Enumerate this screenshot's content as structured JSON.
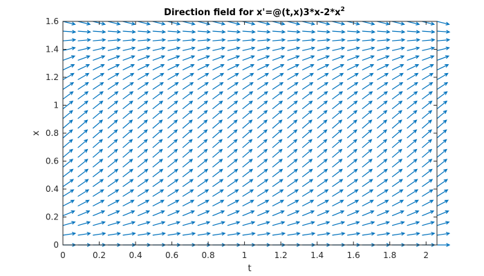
{
  "chart_data": {
    "type": "quiver",
    "title_main": "Direction field for x'=@(t,x)3*x-2*x",
    "title_exponent": "2",
    "xlabel": "t",
    "ylabel": "x",
    "xlim": [
      0,
      2.06
    ],
    "ylim": [
      0,
      1.6
    ],
    "xticks": [
      0,
      0.2,
      0.4,
      0.6,
      0.8,
      1,
      1.2,
      1.4,
      1.6,
      1.8,
      2
    ],
    "xtick_labels": [
      "0",
      "0.2",
      "0.4",
      "0.6",
      "0.8",
      "1",
      "1.2",
      "1.4",
      "1.6",
      "1.8",
      "2"
    ],
    "yticks": [
      0,
      0.2,
      0.4,
      0.6,
      0.8,
      1,
      1.2,
      1.4,
      1.6
    ],
    "ytick_labels": [
      "0",
      "0.2",
      "0.4",
      "0.6",
      "0.8",
      "1",
      "1.2",
      "1.4",
      "1.6"
    ],
    "grid": false,
    "equation": "x' = 3x - 2x^2",
    "t_samples": [
      0,
      0.0824,
      0.1648,
      0.2472,
      0.3296,
      0.412,
      0.4944,
      0.5768,
      0.6592,
      0.7416,
      0.824,
      0.9064,
      0.9888,
      1.0712,
      1.1536,
      1.236,
      1.3184,
      1.4008,
      1.4832,
      1.5656,
      1.648,
      1.7304,
      1.8128,
      1.8952,
      1.9776,
      2.06
    ],
    "x_samples": [
      0,
      0.0696,
      0.1391,
      0.2087,
      0.2783,
      0.3478,
      0.4174,
      0.487,
      0.5565,
      0.6261,
      0.6957,
      0.7652,
      0.8348,
      0.9043,
      0.9739,
      1.0435,
      1.113,
      1.1826,
      1.2522,
      1.3217,
      1.3913,
      1.4609,
      1.5304,
      1.6
    ],
    "color": "#0072BD"
  }
}
